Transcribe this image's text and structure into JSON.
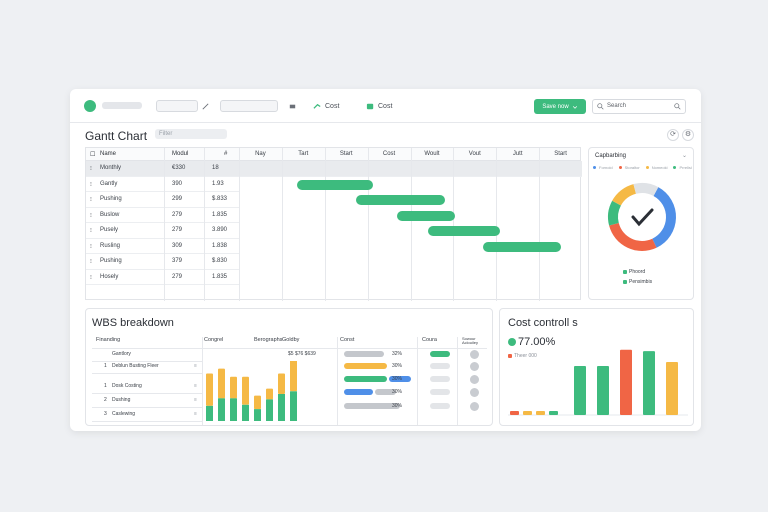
{
  "toolbar": {
    "select1": "",
    "select2": "",
    "btn_cost": "Cost",
    "btn_cost2": "Cost",
    "primary_label": "Save now",
    "search_placeholder": "Search"
  },
  "page": {
    "title": "Gantt Chart",
    "filter_label": "Filter"
  },
  "gantt": {
    "columns": [
      "Name",
      "Modul",
      "#"
    ],
    "months": [
      "Nay",
      "Tart",
      "Start",
      "Cost",
      "Woult",
      "Vout",
      "Jutt",
      "Start"
    ],
    "rows": [
      {
        "name": "Monthly",
        "v1": "€330",
        "v2": "18",
        "selected": true
      },
      {
        "name": "Gantly",
        "v1": "390",
        "v2": "1.93"
      },
      {
        "name": "Pushing",
        "v1": "299",
        "v2": "$.833"
      },
      {
        "name": "Buslow",
        "v1": "279",
        "v2": "1.835"
      },
      {
        "name": "Pusely",
        "v1": "279",
        "v2": "3.890"
      },
      {
        "name": "Rusling",
        "v1": "309",
        "v2": "1.838"
      },
      {
        "name": "Pushing",
        "v1": "379",
        "v2": "$.830"
      },
      {
        "name": "Hosely",
        "v1": "279",
        "v2": "1.835"
      }
    ],
    "bars": [
      {
        "row": 1,
        "start": 0.17,
        "end": 0.39
      },
      {
        "row": 2,
        "start": 0.34,
        "end": 0.6
      },
      {
        "row": 3,
        "start": 0.46,
        "end": 0.63
      },
      {
        "row": 4,
        "start": 0.55,
        "end": 0.76
      },
      {
        "row": 5,
        "start": 0.71,
        "end": 0.94
      }
    ]
  },
  "donut": {
    "title": "Capbarbing",
    "mini_legend": [
      "Fornoid",
      "Storaltor",
      "Nomeoki",
      "Prrelisi"
    ],
    "legend": [
      "Phoord",
      "Pensimbis"
    ],
    "segments": [
      {
        "color": "#4f8fe8",
        "value": 35
      },
      {
        "color": "#f06545",
        "value": 28
      },
      {
        "color": "#3dbb7e",
        "value": 12
      },
      {
        "color": "#f5b945",
        "value": 13
      },
      {
        "color": "#dfe2e6",
        "value": 12
      }
    ]
  },
  "wbs": {
    "title": "WBS breakdown",
    "headers": [
      "Finanding",
      "Congrel",
      "Berographs",
      "Goldby",
      "Const",
      "Coura",
      "Sowour Aclouiley"
    ],
    "items": [
      {
        "num": "",
        "name": "Gantlory"
      },
      {
        "num": "1",
        "name": "Deblun Busting Fleer"
      },
      {
        "num": "1",
        "name": "Dosk Costing"
      },
      {
        "num": "2",
        "name": "Dushing"
      },
      {
        "num": "3",
        "name": "Caslewing"
      }
    ],
    "gold_label": "$5 $76 $639",
    "pcts": [
      "32%",
      "30%",
      "30%",
      "30%",
      "30%"
    ],
    "pill_rows": [
      [
        {
          "c": "#c4c7cc",
          "w": 0.55
        }
      ],
      [
        {
          "c": "#f5b945",
          "w": 0.6
        }
      ],
      [
        {
          "c": "#3dbb7e",
          "w": 0.6
        },
        {
          "c": "#4f8fe8",
          "w": 0.3
        }
      ],
      [
        {
          "c": "#4f8fe8",
          "w": 0.4
        },
        {
          "c": "#c4c7cc",
          "w": 0.3
        }
      ],
      [
        {
          "c": "#c4c7cc",
          "w": 0.78
        }
      ]
    ],
    "bars": [
      {
        "gold": 0.6,
        "green": 0.28
      },
      {
        "gold": 0.55,
        "green": 0.42
      },
      {
        "gold": 0.4,
        "green": 0.42
      },
      {
        "gold": 0.52,
        "green": 0.3
      },
      {
        "gold": 0.25,
        "green": 0.22
      },
      {
        "gold": 0.2,
        "green": 0.4
      },
      {
        "gold": 0.38,
        "green": 0.5
      },
      {
        "gold": 0.6,
        "green": 0.55
      }
    ]
  },
  "cost": {
    "title": "Cost controll s",
    "value": "77.00%",
    "sub": "Theer 000",
    "small_bars": [
      "#f06545",
      "#f5b945",
      "#f5b945",
      "#3dbb7e"
    ],
    "bars": [
      {
        "c": "#3dbb7e",
        "h": 0.72
      },
      {
        "c": "#3dbb7e",
        "h": 0.72
      },
      {
        "c": "#f06545",
        "h": 0.96
      },
      {
        "c": "#3dbb7e",
        "h": 0.94
      },
      {
        "c": "#f5b945",
        "h": 0.78
      }
    ]
  }
}
